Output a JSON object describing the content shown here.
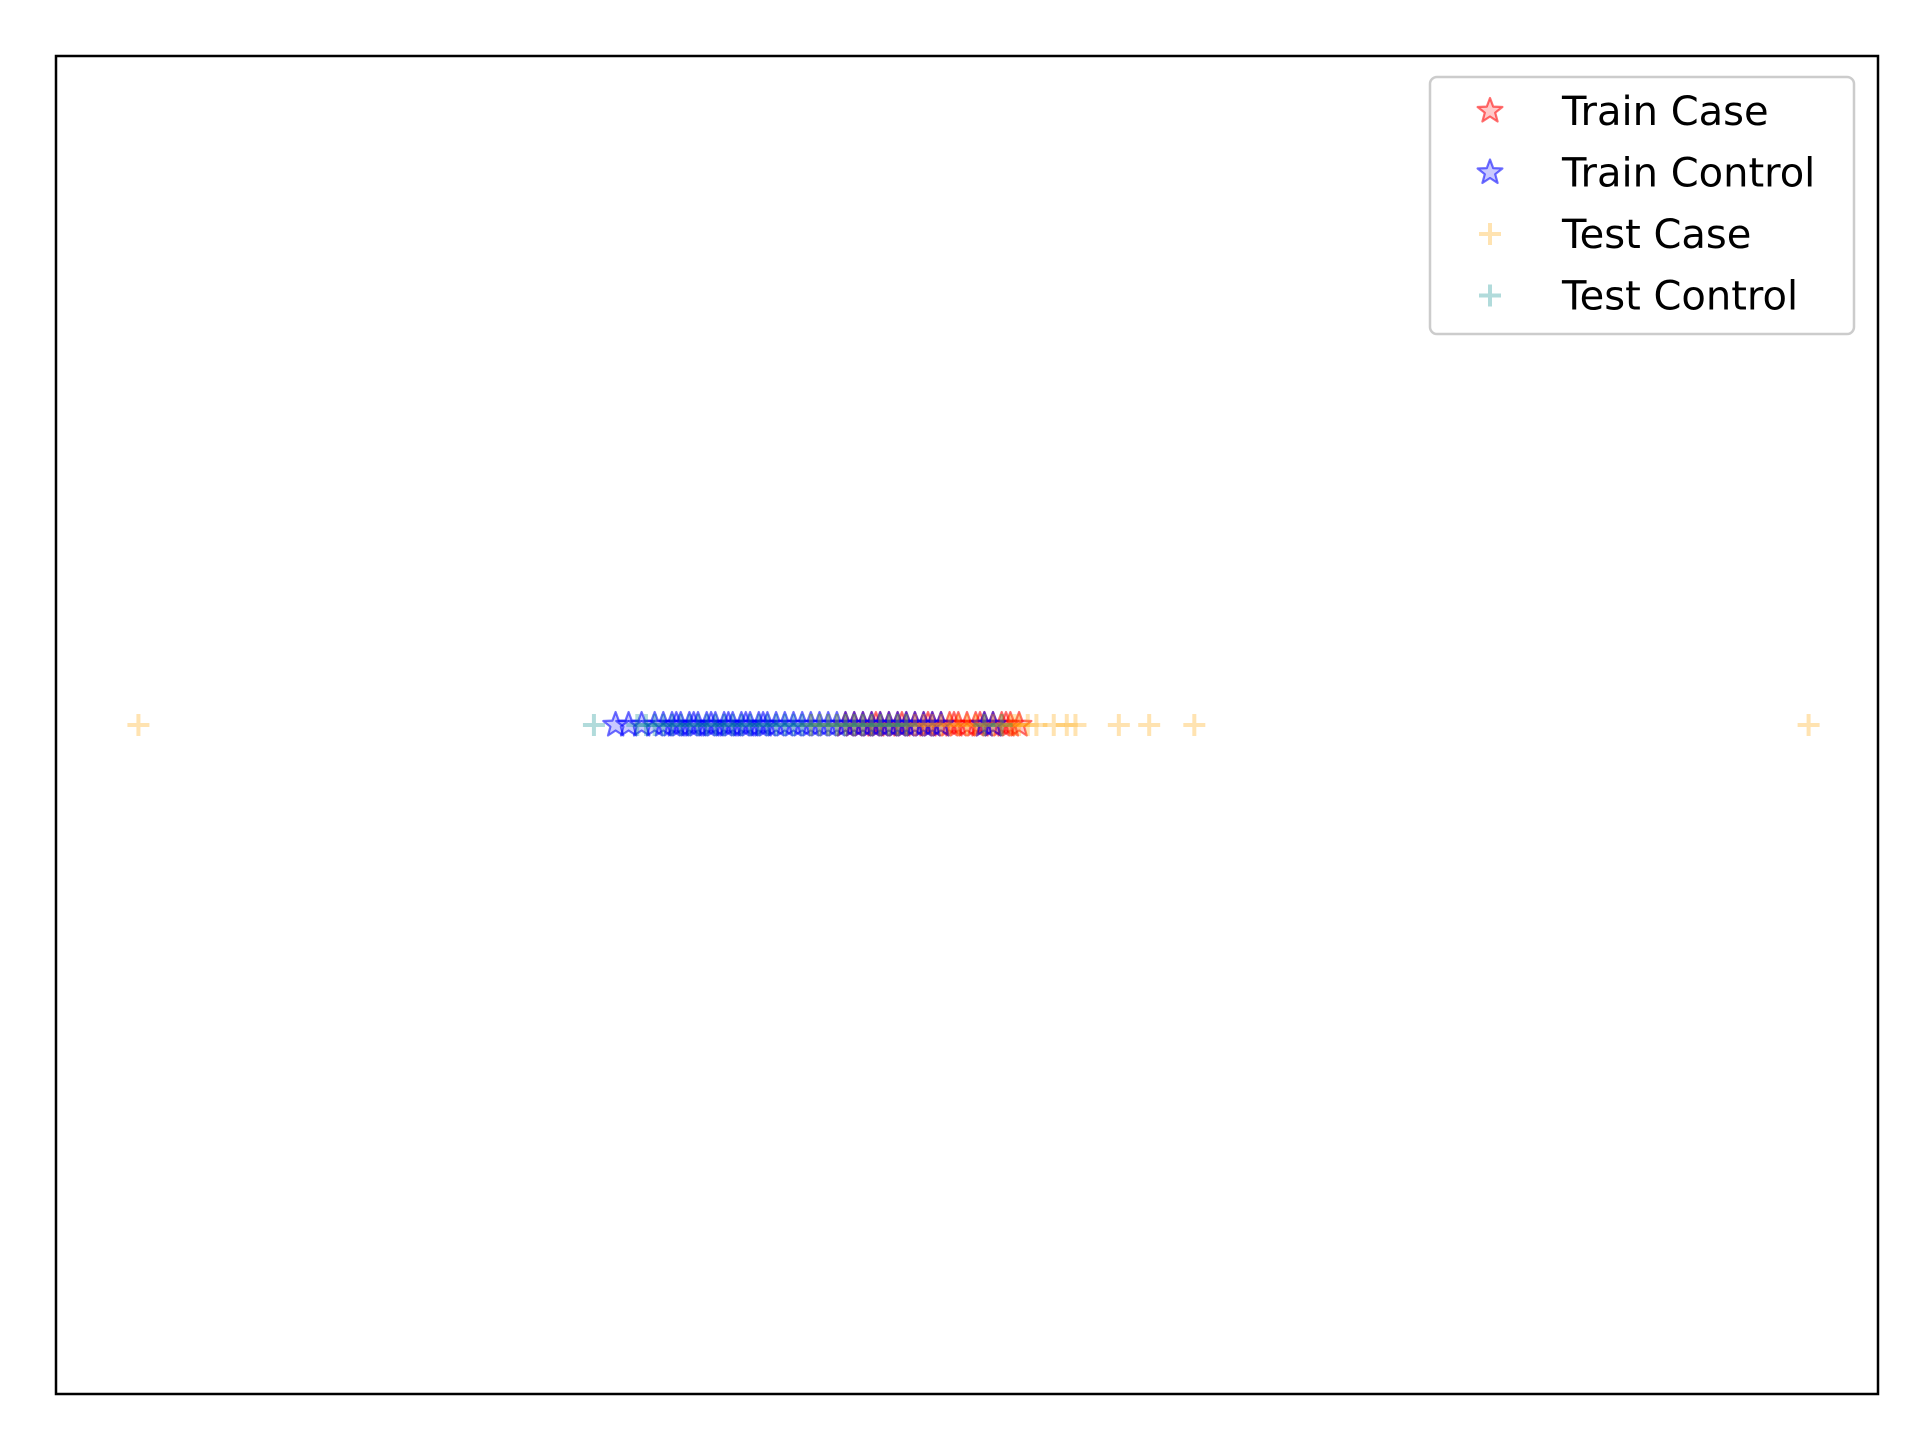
{
  "chart_data": {
    "type": "scatter",
    "title": "",
    "xlabel": "",
    "ylabel": "",
    "xlim": [
      -1.05,
      1.05
    ],
    "ylim": [
      -1,
      1
    ],
    "x_ticks_visible": false,
    "y_ticks_visible": false,
    "grid": false,
    "legend_position": "top-right",
    "series": [
      {
        "name": "Train Case",
        "marker": "star",
        "color": "#ff0000",
        "alpha": 0.35,
        "x": [
          -0.14,
          -0.13,
          -0.12,
          -0.11,
          -0.1,
          -0.09,
          -0.08,
          -0.07,
          -0.06,
          -0.05,
          -0.04,
          -0.03,
          -0.02,
          -0.01,
          0.0,
          0.01,
          0.02,
          0.03,
          0.04,
          0.05,
          0.06,
          -0.105,
          -0.075,
          -0.045,
          -0.015,
          0.015,
          0.045
        ],
        "y": [
          0,
          0,
          0,
          0,
          0,
          0,
          0,
          0,
          0,
          0,
          0,
          0,
          0,
          0,
          0,
          0,
          0,
          0,
          0,
          0,
          0,
          0,
          0,
          0,
          0,
          0,
          0
        ]
      },
      {
        "name": "Train Control",
        "marker": "star",
        "color": "#0000ff",
        "alpha": 0.35,
        "x": [
          -0.405,
          -0.39,
          -0.375,
          -0.36,
          -0.35,
          -0.34,
          -0.33,
          -0.32,
          -0.31,
          -0.3,
          -0.29,
          -0.28,
          -0.27,
          -0.26,
          -0.25,
          -0.24,
          -0.23,
          -0.22,
          -0.21,
          -0.2,
          -0.19,
          -0.18,
          -0.17,
          -0.16,
          -0.15,
          -0.14,
          -0.13,
          -0.12,
          -0.11,
          -0.1,
          -0.09,
          -0.08,
          -0.07,
          -0.06,
          -0.05,
          -0.04,
          -0.03,
          0.02,
          0.03,
          -0.335,
          -0.315,
          -0.295,
          -0.275,
          -0.255,
          -0.235
        ],
        "y": [
          0,
          0,
          0,
          0,
          0,
          0,
          0,
          0,
          0,
          0,
          0,
          0,
          0,
          0,
          0,
          0,
          0,
          0,
          0,
          0,
          0,
          0,
          0,
          0,
          0,
          0,
          0,
          0,
          0,
          0,
          0,
          0,
          0,
          0,
          0,
          0,
          0,
          0,
          0,
          0,
          0,
          0,
          0,
          0,
          0
        ]
      },
      {
        "name": "Test Case",
        "marker": "plus",
        "color": "#ffa500",
        "alpha": 0.3,
        "x": [
          -0.955,
          -0.18,
          -0.17,
          -0.16,
          -0.15,
          -0.14,
          -0.13,
          -0.12,
          -0.11,
          -0.1,
          -0.09,
          -0.08,
          -0.07,
          -0.06,
          -0.05,
          -0.04,
          -0.03,
          -0.02,
          -0.01,
          0.0,
          0.01,
          0.02,
          0.03,
          0.04,
          0.05,
          0.055,
          0.06,
          0.07,
          0.08,
          0.1,
          0.115,
          0.125,
          0.175,
          0.21,
          0.262,
          0.97
        ],
        "y": [
          0,
          0,
          0,
          0,
          0,
          0,
          0,
          0,
          0,
          0,
          0,
          0,
          0,
          0,
          0,
          0,
          0,
          0,
          0,
          0,
          0,
          0,
          0,
          0,
          0,
          0,
          0,
          0,
          0,
          0,
          0,
          0,
          0,
          0,
          0,
          0
        ]
      },
      {
        "name": "Test Control",
        "marker": "plus",
        "color": "#008b8b",
        "alpha": 0.3,
        "x": [
          -0.43,
          -0.38,
          -0.37,
          -0.36,
          -0.35,
          -0.34,
          -0.33,
          -0.32,
          -0.31,
          -0.3,
          -0.29,
          -0.28,
          -0.27,
          -0.26,
          -0.25,
          -0.24,
          -0.23,
          -0.22,
          -0.21,
          -0.2,
          -0.19,
          -0.18,
          -0.17,
          -0.16,
          -0.15,
          -0.14,
          -0.13,
          -0.12,
          -0.11,
          -0.1,
          -0.09,
          -0.08,
          -0.07,
          0.02,
          0.04
        ],
        "y": [
          0,
          0,
          0,
          0,
          0,
          0,
          0,
          0,
          0,
          0,
          0,
          0,
          0,
          0,
          0,
          0,
          0,
          0,
          0,
          0,
          0,
          0,
          0,
          0,
          0,
          0,
          0,
          0,
          0,
          0,
          0,
          0,
          0,
          0,
          0
        ]
      }
    ]
  }
}
